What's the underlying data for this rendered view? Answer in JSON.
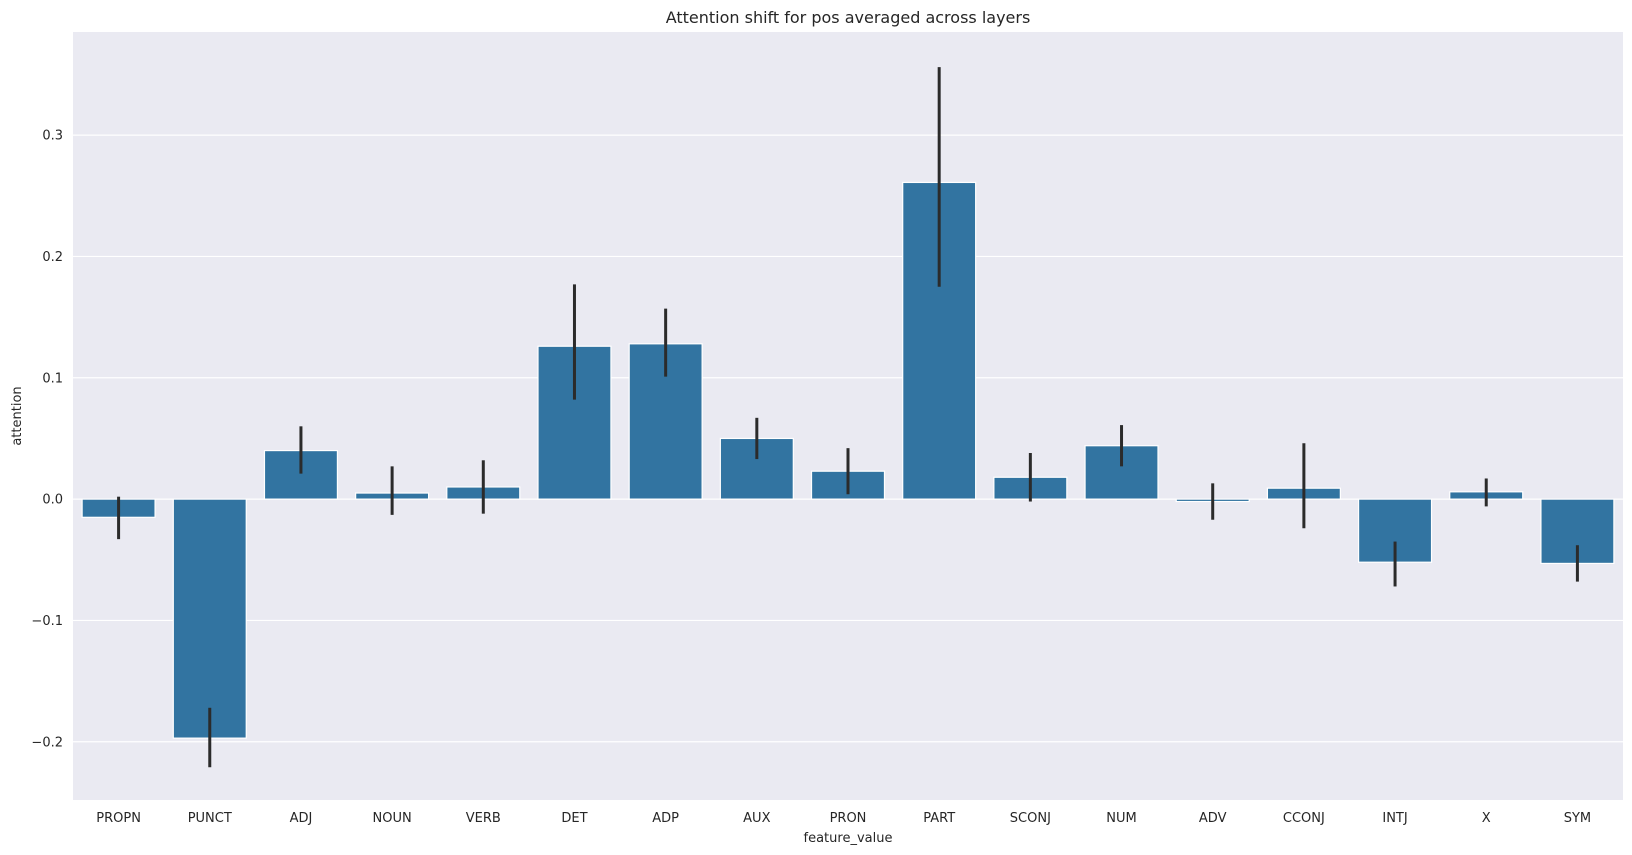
{
  "chart_data": {
    "type": "bar",
    "title": "Attention shift for pos averaged across layers",
    "xlabel": "feature_value",
    "ylabel": "attention",
    "categories": [
      "PROPN",
      "PUNCT",
      "ADJ",
      "NOUN",
      "VERB",
      "DET",
      "ADP",
      "AUX",
      "PRON",
      "PART",
      "SCONJ",
      "NUM",
      "ADV",
      "CCONJ",
      "INTJ",
      "X",
      "SYM"
    ],
    "values": [
      -0.015,
      -0.197,
      0.04,
      0.005,
      0.01,
      0.126,
      0.128,
      0.05,
      0.023,
      0.261,
      0.018,
      0.044,
      -0.002,
      0.009,
      -0.052,
      0.006,
      -0.053
    ],
    "error_low": [
      -0.033,
      -0.221,
      0.021,
      -0.013,
      -0.012,
      0.082,
      0.101,
      0.033,
      0.004,
      0.175,
      -0.002,
      0.027,
      -0.017,
      -0.024,
      -0.072,
      -0.006,
      -0.068
    ],
    "error_high": [
      0.002,
      -0.172,
      0.06,
      0.027,
      0.032,
      0.177,
      0.157,
      0.067,
      0.042,
      0.356,
      0.038,
      0.061,
      0.013,
      0.046,
      -0.035,
      0.017,
      -0.038
    ],
    "ylim": [
      -0.248,
      0.385
    ],
    "yticks": [
      -0.2,
      -0.1,
      0.0,
      0.1,
      0.2,
      0.3
    ],
    "ytick_labels": [
      "−0.2",
      "−0.1",
      "0.0",
      "0.1",
      "0.2",
      "0.3"
    ],
    "grid": true,
    "legend": "none",
    "colors": {
      "bar": "#3274a1",
      "background": "#eaeaf2",
      "grid": "#ffffff",
      "error_bar": "#2b2b2b"
    }
  }
}
